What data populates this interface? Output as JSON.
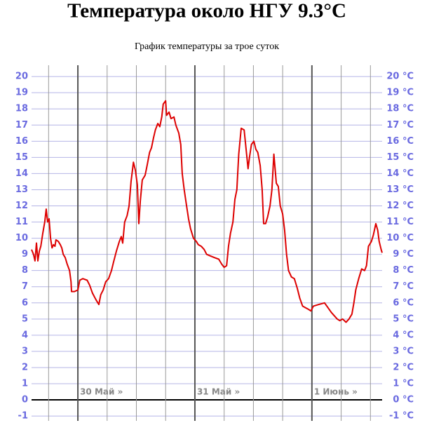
{
  "chart_data": {
    "type": "line",
    "title": "Температура около НГУ 9.3°C",
    "subtitle": "График температуры за трое суток",
    "x": [
      -9.5,
      -9.1,
      -8.8,
      -8.5,
      -8.2,
      -7.9,
      -7.6,
      -7.2,
      -6.8,
      -6.5,
      -6.2,
      -5.9,
      -5.6,
      -5.3,
      -5.0,
      -4.7,
      -4.5,
      -4.0,
      -3.6,
      -3.3,
      -3.0,
      -2.6,
      -2.2,
      -1.7,
      -1.4,
      -1.3,
      -0.7,
      0,
      0.4,
      1.0,
      1.9,
      2.4,
      3.0,
      3.7,
      4.3,
      4.7,
      5.2,
      5.7,
      6.3,
      6.9,
      7.3,
      7.9,
      8.5,
      8.9,
      9.2,
      9.6,
      10.1,
      10.5,
      10.9,
      11.4,
      11.8,
      12.2,
      12.5,
      12.8,
      13.2,
      13.8,
      14.2,
      14.7,
      15.1,
      15.5,
      15.9,
      16.4,
      16.8,
      17.2,
      17.5,
      18.0,
      18.2,
      18.7,
      19.1,
      19.7,
      20.1,
      20.7,
      21.1,
      21.4,
      21.8,
      22.3,
      22.7,
      23.1,
      23.7,
      24.3,
      24.7,
      25.3,
      25.9,
      26.4,
      27.2,
      28.0,
      28.9,
      29.5,
      30.0,
      30.5,
      30.9,
      31.3,
      31.8,
      32.2,
      32.6,
      33.0,
      33.5,
      34.1,
      34.5,
      34.9,
      35.2,
      35.6,
      36.1,
      36.5,
      36.9,
      37.4,
      37.8,
      38.1,
      38.5,
      38.9,
      39.4,
      39.8,
      40.2,
      40.7,
      41.1,
      41.5,
      42.0,
      42.4,
      42.8,
      43.2,
      43.8,
      44.4,
      45.0,
      45.5,
      46.1,
      46.7,
      47.3,
      47.8,
      48.3,
      49.4,
      50.6,
      51.3,
      52.0,
      52.6,
      53.2,
      53.7,
      54.3,
      55.0,
      55.6,
      56.2,
      56.6,
      57.0,
      57.6,
      58.2,
      58.8,
      59.2,
      59.6,
      60.2,
      60.6,
      61.1,
      61.5,
      61.8,
      62.2,
      62.4
    ],
    "series": [
      {
        "name": "Температура",
        "color": "#dd0000",
        "values": [
          9.3,
          9.0,
          8.6,
          9.7,
          8.6,
          9.2,
          9.5,
          10.3,
          11.0,
          11.8,
          11.0,
          11.2,
          10.0,
          9.4,
          9.6,
          9.5,
          9.9,
          9.8,
          9.6,
          9.4,
          9.0,
          8.8,
          8.4,
          8.0,
          7.3,
          6.7,
          6.7,
          6.8,
          7.4,
          7.5,
          7.4,
          7.1,
          6.6,
          6.2,
          5.9,
          6.5,
          6.8,
          7.3,
          7.5,
          8.0,
          8.5,
          9.2,
          9.8,
          10.1,
          9.7,
          11.0,
          11.4,
          12.0,
          13.5,
          14.7,
          14.2,
          13.3,
          10.9,
          12.3,
          13.6,
          13.9,
          14.5,
          15.3,
          15.6,
          16.2,
          16.7,
          17.1,
          16.9,
          17.5,
          18.3,
          18.5,
          17.6,
          17.8,
          17.4,
          17.5,
          17.0,
          16.5,
          15.8,
          14.0,
          13.0,
          12.0,
          11.2,
          10.6,
          10.0,
          9.8,
          9.6,
          9.5,
          9.3,
          9.0,
          8.9,
          8.8,
          8.7,
          8.4,
          8.2,
          8.3,
          9.5,
          10.3,
          11.0,
          12.4,
          13.0,
          15.2,
          16.8,
          16.7,
          15.5,
          14.3,
          15.0,
          15.8,
          16.0,
          15.5,
          15.3,
          14.5,
          13.0,
          10.9,
          10.9,
          11.3,
          12.0,
          13.0,
          15.2,
          13.4,
          13.2,
          12.0,
          11.5,
          10.5,
          9.0,
          8.0,
          7.6,
          7.5,
          6.9,
          6.3,
          5.8,
          5.7,
          5.6,
          5.5,
          5.8,
          5.9,
          6.0,
          5.7,
          5.4,
          5.2,
          5.0,
          4.9,
          5.0,
          4.8,
          5.0,
          5.3,
          6.0,
          6.8,
          7.5,
          8.1,
          8.0,
          8.3,
          9.5,
          9.8,
          10.2,
          10.9,
          10.5,
          9.8,
          9.3,
          9.1
        ]
      }
    ],
    "xlim": [
      -9.5,
      62.4
    ],
    "xticks": [
      -6,
      0,
      6,
      12,
      18,
      24,
      30,
      36,
      42,
      48,
      54,
      60
    ],
    "ylim": [
      -1.3,
      20.7
    ],
    "yticks": [
      -1,
      0,
      1,
      2,
      3,
      4,
      5,
      6,
      7,
      8,
      9,
      10,
      11,
      12,
      13,
      14,
      15,
      16,
      17,
      18,
      19,
      20
    ],
    "y2lim": [
      -1.3,
      20.7
    ],
    "y2ticks": [
      {
        "value": -1,
        "label": "-1 °C"
      },
      {
        "value": 0,
        "label": "0 °C"
      },
      {
        "value": 1,
        "label": "1 °C"
      },
      {
        "value": 2,
        "label": "2 °C"
      },
      {
        "value": 3,
        "label": "3 °C"
      },
      {
        "value": 4,
        "label": "4 °C"
      },
      {
        "value": 5,
        "label": "5 °C"
      },
      {
        "value": 6,
        "label": "6 °C"
      },
      {
        "value": 7,
        "label": "7 °C"
      },
      {
        "value": 8,
        "label": "8 °C"
      },
      {
        "value": 9,
        "label": "9 °C"
      },
      {
        "value": 10,
        "label": "10 °C"
      },
      {
        "value": 11,
        "label": "11 °C"
      },
      {
        "value": 12,
        "label": "12 °C"
      },
      {
        "value": 13,
        "label": "13 °C"
      },
      {
        "value": 14,
        "label": "14 °C"
      },
      {
        "value": 15,
        "label": "15 °C"
      },
      {
        "value": 16,
        "label": "16 °C"
      },
      {
        "value": 17,
        "label": "17 °C"
      },
      {
        "value": 18,
        "label": "18 °C"
      },
      {
        "value": 19,
        "label": "19 °C"
      },
      {
        "value": 20,
        "label": "20 °C"
      }
    ],
    "day_labels": [
      {
        "text": "30 Май »",
        "x": 0
      },
      {
        "text": "31 Май »",
        "x": 24
      },
      {
        "text": "1 Июнь »",
        "x": 48
      }
    ],
    "grid": true
  }
}
